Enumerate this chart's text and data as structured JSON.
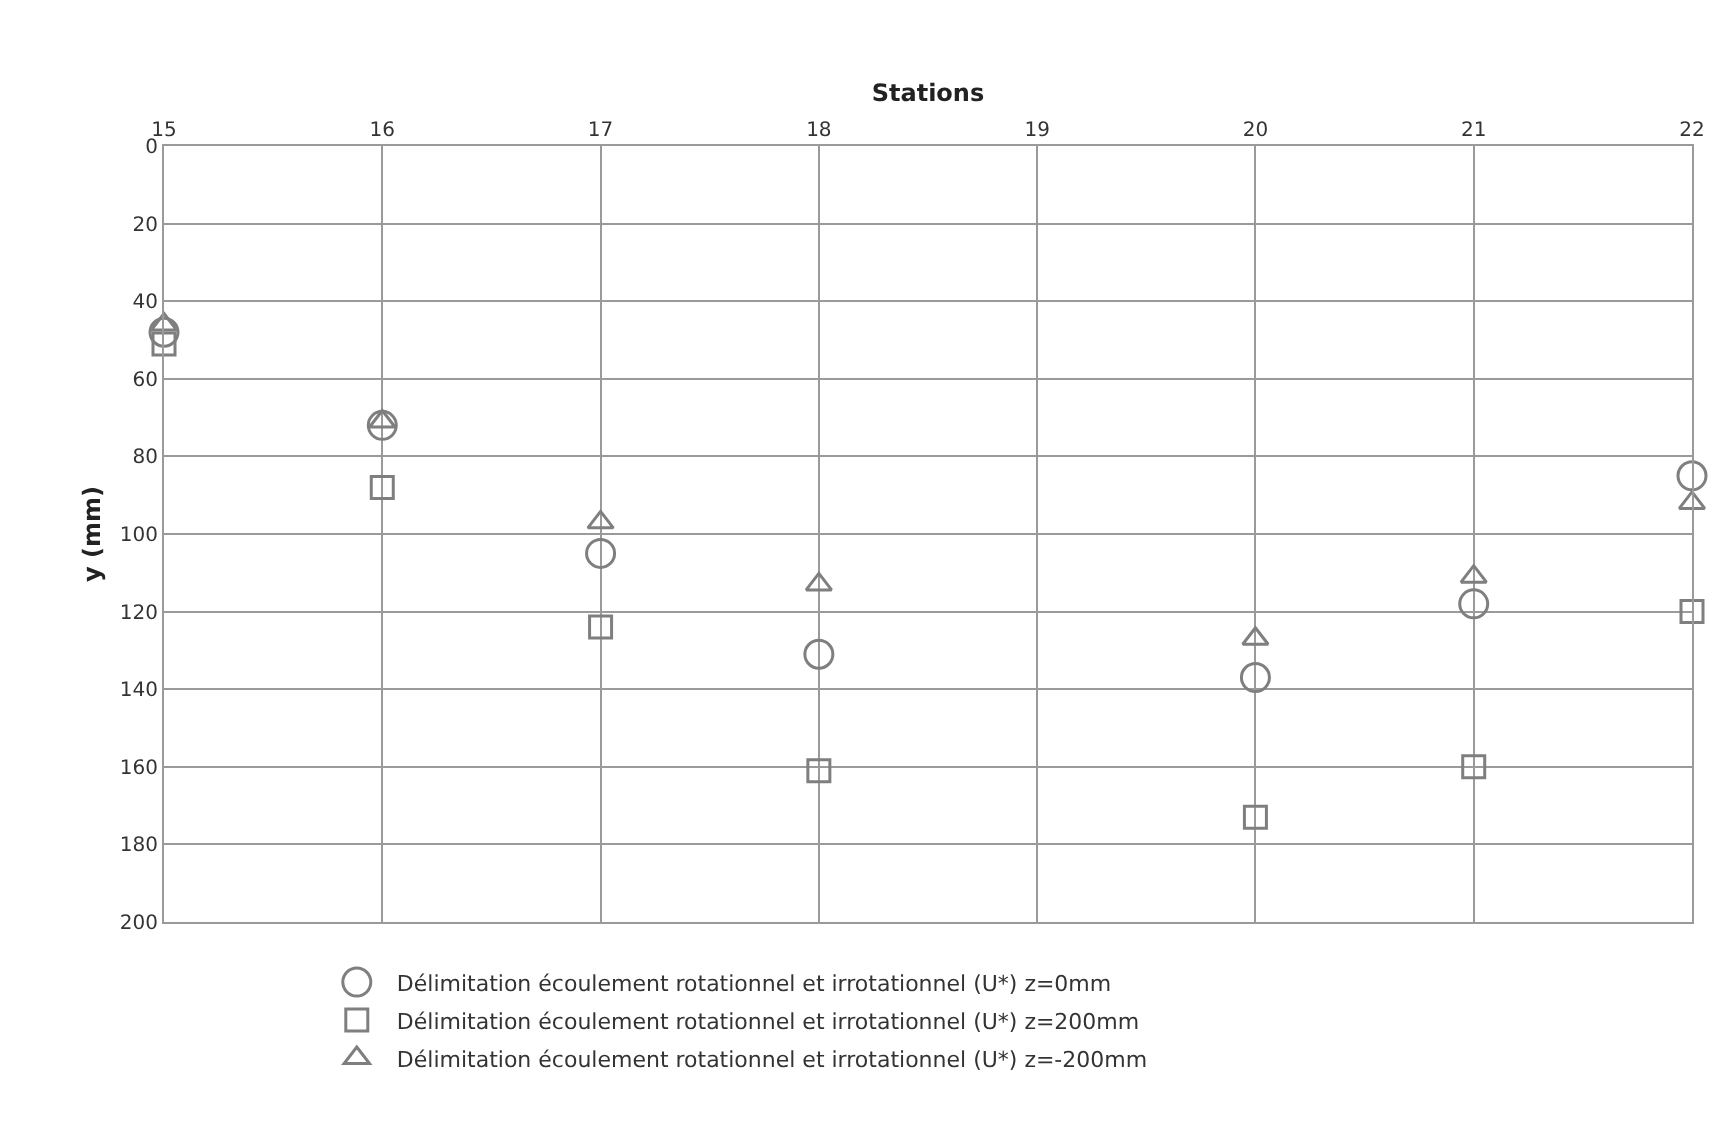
{
  "chart_data": {
    "type": "scatter",
    "xlabel": "Stations",
    "ylabel": "y (mm)",
    "x": [
      15,
      16,
      17,
      18,
      20,
      21,
      22
    ],
    "series": [
      {
        "name": "Délimitation écoulement rotationnel et irrotationnel (U*) z=0mm",
        "color": "#7f7f7f",
        "marker": "circle",
        "values": [
          48,
          72,
          105,
          131,
          137,
          118,
          85
        ]
      },
      {
        "name": "Délimitation écoulement rotationnel et irrotationnel (U*) z=200mm",
        "color": "#7f7f7f",
        "marker": "square",
        "values": [
          51,
          88,
          124,
          161,
          173,
          160,
          120
        ]
      },
      {
        "name": "Délimitation écoulement rotationnel et irrotationnel (U*) z=-200mm",
        "color": "#7f7f7f",
        "marker": "triangle",
        "values": [
          46,
          71,
          97,
          113,
          127,
          111,
          92
        ]
      }
    ],
    "xlim": [
      15,
      22
    ],
    "xticks": [
      15,
      16,
      17,
      18,
      19,
      20,
      21,
      22
    ],
    "ylim": [
      200,
      0
    ],
    "yticks": [
      0,
      20,
      40,
      60,
      80,
      100,
      120,
      140,
      160,
      180,
      200
    ],
    "grid": true,
    "legend": "bottom"
  }
}
